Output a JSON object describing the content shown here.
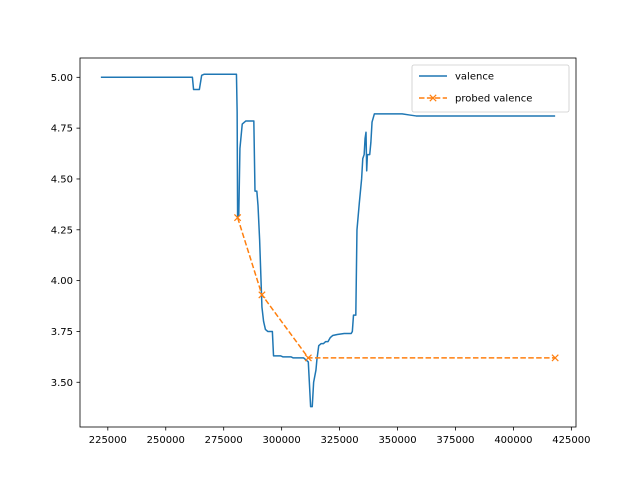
{
  "chart_data": {
    "type": "line",
    "title": "",
    "xlabel": "",
    "ylabel": "",
    "xlim": [
      213000,
      427000
    ],
    "ylim": [
      3.28,
      5.095
    ],
    "x_ticks": [
      225000,
      250000,
      275000,
      300000,
      325000,
      350000,
      375000,
      400000,
      425000
    ],
    "x_tick_labels": [
      "225000",
      "250000",
      "275000",
      "300000",
      "325000",
      "350000",
      "375000",
      "400000",
      "425000"
    ],
    "y_ticks": [
      3.5,
      3.75,
      4.0,
      4.25,
      4.5,
      4.75,
      5.0
    ],
    "y_tick_labels": [
      "3.50",
      "3.75",
      "4.00",
      "4.25",
      "4.50",
      "4.75",
      "5.00"
    ],
    "grid": false,
    "legend_position": "top-right",
    "series": [
      {
        "name": "valence",
        "color": "#1f77b4",
        "style": "solid",
        "marker": "none",
        "points": [
          [
            222000,
            5.0
          ],
          [
            261500,
            5.0
          ],
          [
            262000,
            4.94
          ],
          [
            264500,
            4.94
          ],
          [
            265500,
            5.01
          ],
          [
            266500,
            5.015
          ],
          [
            280500,
            5.015
          ],
          [
            280800,
            4.83
          ],
          [
            281000,
            4.31
          ],
          [
            281500,
            4.32
          ],
          [
            282000,
            4.65
          ],
          [
            283000,
            4.77
          ],
          [
            284500,
            4.785
          ],
          [
            288000,
            4.785
          ],
          [
            288500,
            4.44
          ],
          [
            289300,
            4.44
          ],
          [
            289800,
            4.37
          ],
          [
            290500,
            4.2
          ],
          [
            291500,
            3.87
          ],
          [
            292200,
            3.8
          ],
          [
            293000,
            3.76
          ],
          [
            294000,
            3.75
          ],
          [
            296000,
            3.75
          ],
          [
            296500,
            3.63
          ],
          [
            299500,
            3.63
          ],
          [
            300500,
            3.625
          ],
          [
            304000,
            3.625
          ],
          [
            305000,
            3.62
          ],
          [
            309500,
            3.62
          ],
          [
            310500,
            3.61
          ],
          [
            311500,
            3.6
          ],
          [
            312500,
            3.38
          ],
          [
            313200,
            3.38
          ],
          [
            313800,
            3.5
          ],
          [
            314800,
            3.56
          ],
          [
            315200,
            3.61
          ],
          [
            316000,
            3.68
          ],
          [
            317000,
            3.69
          ],
          [
            318000,
            3.69
          ],
          [
            319000,
            3.7
          ],
          [
            320000,
            3.7
          ],
          [
            321000,
            3.72
          ],
          [
            322000,
            3.73
          ],
          [
            324000,
            3.735
          ],
          [
            327000,
            3.74
          ],
          [
            330000,
            3.74
          ],
          [
            330500,
            3.75
          ],
          [
            331000,
            3.83
          ],
          [
            332000,
            3.83
          ],
          [
            332500,
            4.25
          ],
          [
            333500,
            4.38
          ],
          [
            334500,
            4.5
          ],
          [
            335000,
            4.6
          ],
          [
            335600,
            4.62
          ],
          [
            336000,
            4.7
          ],
          [
            336400,
            4.73
          ],
          [
            336700,
            4.54
          ],
          [
            337000,
            4.62
          ],
          [
            338000,
            4.62
          ],
          [
            338500,
            4.68
          ],
          [
            339000,
            4.78
          ],
          [
            340000,
            4.82
          ],
          [
            342000,
            4.82
          ],
          [
            352000,
            4.82
          ],
          [
            355000,
            4.815
          ],
          [
            358000,
            4.81
          ],
          [
            418000,
            4.81
          ]
        ]
      },
      {
        "name": "probed valence",
        "color": "#ff7f0e",
        "style": "dashed",
        "marker": "x",
        "points": [
          [
            281000,
            4.31
          ],
          [
            291500,
            3.93
          ],
          [
            311500,
            3.62
          ],
          [
            418000,
            3.62
          ]
        ]
      }
    ]
  }
}
